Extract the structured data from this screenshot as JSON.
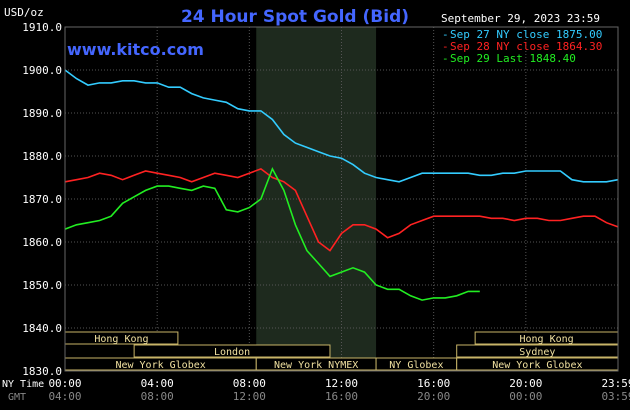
{
  "header": {
    "title": "24 Hour Spot Gold (Bid)",
    "website": "www.kitco.com",
    "date": "September 29, 2023 23:59",
    "units": "USD/oz"
  },
  "legend": [
    {
      "label": "Sep 27 NY close 1875.00",
      "color": "#33ccff"
    },
    {
      "label": "Sep 28 NY close 1864.30",
      "color": "#ff2222"
    },
    {
      "label": "Sep 29 Last 1848.40",
      "color": "#22ee22"
    }
  ],
  "time_rows": {
    "ny_label": "NY Time",
    "gmt_label": "GMT"
  },
  "sessions": [
    {
      "label": "Hong Kong",
      "start": 0,
      "end": 4.9,
      "row": 0
    },
    {
      "label": "Hong Kong",
      "start": 17.8,
      "end": 24,
      "row": 0
    },
    {
      "label": "London",
      "start": 3.0,
      "end": 11.5,
      "row": 1
    },
    {
      "label": "Sydney",
      "start": 17.0,
      "end": 24,
      "row": 1
    },
    {
      "label": "New York Globex",
      "start": 0,
      "end": 8.3,
      "row": 2
    },
    {
      "label": "New York NYMEX",
      "start": 8.3,
      "end": 13.5,
      "row": 2
    },
    {
      "label": "NY Globex",
      "start": 13.5,
      "end": 17.0,
      "row": 2
    },
    {
      "label": "New York Globex",
      "start": 17.0,
      "end": 24,
      "row": 2
    }
  ],
  "chart_data": {
    "type": "line",
    "title": "24 Hour Spot Gold (Bid)",
    "ylabel": "USD/oz",
    "ylim": [
      1830,
      1910
    ],
    "y_ticks": [
      1830,
      1840,
      1850,
      1860,
      1870,
      1880,
      1890,
      1900,
      1910
    ],
    "y_tick_labels": [
      "1830.0",
      "1840.0",
      "1850.0",
      "1860.0",
      "1870.0",
      "1880.0",
      "1890.0",
      "1900.0",
      "1910.0"
    ],
    "xlim": [
      0,
      24
    ],
    "x_ticks": [
      0,
      4,
      8,
      12,
      16,
      20,
      24
    ],
    "x_tick_labels_ny": [
      "00:00",
      "04:00",
      "08:00",
      "12:00",
      "16:00",
      "20:00",
      "23:59"
    ],
    "x_tick_labels_gmt": [
      "04:00",
      "08:00",
      "12:00",
      "16:00",
      "20:00",
      "00:00",
      "03:59"
    ],
    "nymex_session_hours": [
      8.3,
      13.5
    ],
    "grid": true,
    "legend_position": "top-right",
    "series": [
      {
        "name": "Sep 27 NY close 1875.00",
        "color": "#33ccff",
        "x": [
          0,
          0.5,
          1,
          1.5,
          2,
          2.5,
          3,
          3.5,
          4,
          4.5,
          5,
          5.5,
          6,
          6.5,
          7,
          7.5,
          8,
          8.5,
          9,
          9.5,
          10,
          10.5,
          11,
          11.5,
          12,
          12.5,
          13,
          13.5,
          14,
          14.5,
          15,
          15.5,
          16,
          16.5,
          17,
          17.5,
          18,
          18.5,
          19,
          19.5,
          20,
          20.5,
          21,
          21.5,
          22,
          22.5,
          23,
          23.5,
          24
        ],
        "y": [
          1900,
          1898,
          1896.5,
          1897,
          1897,
          1897.5,
          1897.5,
          1897,
          1897,
          1896,
          1896,
          1894.5,
          1893.5,
          1893,
          1892.5,
          1891,
          1890.5,
          1890.5,
          1888.5,
          1885,
          1883,
          1882,
          1881,
          1880,
          1879.5,
          1878,
          1876,
          1875,
          1874.5,
          1874,
          1875,
          1876,
          1876,
          1876,
          1876,
          1876,
          1875.5,
          1875.5,
          1876,
          1876,
          1876.5,
          1876.5,
          1876.5,
          1876.5,
          1874.5,
          1874,
          1874,
          1874,
          1874.5
        ]
      },
      {
        "name": "Sep 28 NY close 1864.30",
        "color": "#ff2222",
        "x": [
          0,
          0.5,
          1,
          1.5,
          2,
          2.5,
          3,
          3.5,
          4,
          4.5,
          5,
          5.5,
          6,
          6.5,
          7,
          7.5,
          8,
          8.5,
          9,
          9.5,
          10,
          10.5,
          11,
          11.5,
          12,
          12.5,
          13,
          13.5,
          14,
          14.5,
          15,
          15.5,
          16,
          16.5,
          17,
          17.5,
          18,
          18.5,
          19,
          19.5,
          20,
          20.5,
          21,
          21.5,
          22,
          22.5,
          23,
          23.5,
          24
        ],
        "y": [
          1874,
          1874.5,
          1875,
          1876,
          1875.5,
          1874.5,
          1875.5,
          1876.5,
          1876,
          1875.5,
          1875,
          1874,
          1875,
          1876,
          1875.5,
          1875,
          1876,
          1877,
          1875,
          1874,
          1872,
          1866,
          1860,
          1858,
          1862,
          1864,
          1864,
          1863,
          1861,
          1862,
          1864,
          1865,
          1866,
          1866,
          1866,
          1866,
          1866,
          1865.5,
          1865.5,
          1865,
          1865.5,
          1865.5,
          1865,
          1865,
          1865.5,
          1866,
          1866,
          1864.5,
          1863.5
        ]
      },
      {
        "name": "Sep 29 Last 1848.40",
        "color": "#22ee22",
        "x": [
          0,
          0.5,
          1,
          1.5,
          2,
          2.5,
          3,
          3.5,
          4,
          4.5,
          5,
          5.5,
          6,
          6.5,
          7,
          7.5,
          8,
          8.5,
          9,
          9.5,
          10,
          10.5,
          11,
          11.5,
          12,
          12.5,
          13,
          13.5,
          14,
          14.5,
          15,
          15.5,
          16,
          16.5,
          17,
          17.5,
          18
        ],
        "y": [
          1863,
          1864,
          1864.5,
          1865,
          1866,
          1869,
          1870.5,
          1872,
          1873,
          1873,
          1872.5,
          1872,
          1873,
          1872.5,
          1867.5,
          1867,
          1868,
          1870,
          1877,
          1872,
          1864,
          1858,
          1855,
          1852,
          1853,
          1854,
          1853,
          1850,
          1849,
          1849,
          1847.5,
          1846.5,
          1847,
          1847,
          1847.5,
          1848.5,
          1848.5
        ]
      }
    ]
  }
}
